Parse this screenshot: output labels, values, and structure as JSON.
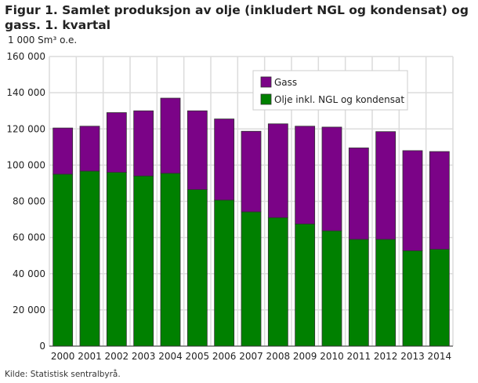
{
  "title": "Figur 1. Samlet produksjon av olje (inkludert NGL og kondensat) og gass. 1. kvartal",
  "source": "Kilde: Statistisk sentralbyrå.",
  "chart_data": {
    "type": "bar",
    "stacked": true,
    "title": "Figur 1. Samlet produksjon av olje (inkludert NGL og kondensat) og gass. 1. kvartal",
    "ylabel": "1 000 Sm³ o.e.",
    "xlabel": "",
    "ylim": [
      0,
      160000
    ],
    "yticks": [
      0,
      20000,
      40000,
      60000,
      80000,
      100000,
      120000,
      140000,
      160000
    ],
    "ytick_labels": [
      "0",
      "20 000",
      "40 000",
      "60 000",
      "80 000",
      "100 000",
      "120 000",
      "140 000",
      "160 000"
    ],
    "grid": true,
    "legend_position": "top-right",
    "categories": [
      "2000",
      "2001",
      "2002",
      "2003",
      "2004",
      "2005",
      "2006",
      "2007",
      "2008",
      "2009",
      "2010",
      "2011",
      "2012",
      "2013",
      "2014"
    ],
    "series": [
      {
        "name": "Olje inkl. NGL og kondensat",
        "color": "#008000",
        "values": [
          95000,
          96700,
          96000,
          94000,
          95500,
          86500,
          80700,
          74200,
          71000,
          67500,
          63700,
          59000,
          59000,
          52700,
          53500
        ]
      },
      {
        "name": "Gass",
        "color": "#7b0387",
        "values": [
          25500,
          24800,
          33000,
          36000,
          41500,
          43500,
          44800,
          44500,
          51800,
          54000,
          57300,
          50500,
          59500,
          55300,
          54000
        ]
      }
    ]
  }
}
